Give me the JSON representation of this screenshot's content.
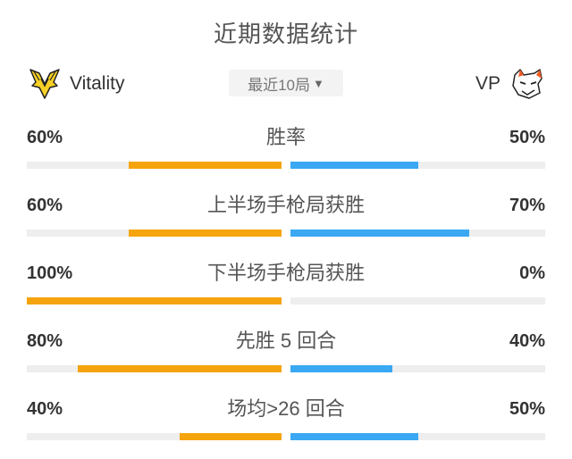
{
  "title": "近期数据统计",
  "team_left": {
    "name": "Vitality",
    "logo_icon": "vitality-bee-logo-icon"
  },
  "team_right": {
    "name": "VP",
    "logo_icon": "virtus-pro-bear-logo-icon"
  },
  "filter": {
    "label": "最近10局",
    "caret_icon": "triangle-down-icon"
  },
  "colors": {
    "left_bar": "#f5a40d",
    "right_bar": "#3aa8f2",
    "track": "#eeeeee"
  },
  "stats": [
    {
      "label": "胜率",
      "left": "60%",
      "right": "50%",
      "left_value": 0.6,
      "right_value": 0.5
    },
    {
      "label": "上半场手枪局获胜",
      "left": "60%",
      "right": "70%",
      "left_value": 0.6,
      "right_value": 0.7
    },
    {
      "label": "下半场手枪局获胜",
      "left": "100%",
      "right": "0%",
      "left_value": 1.0,
      "right_value": 0.0
    },
    {
      "label": "先胜 5 回合",
      "left": "80%",
      "right": "40%",
      "left_value": 0.8,
      "right_value": 0.4
    },
    {
      "label": "场均>26 回合",
      "left": "40%",
      "right": "50%",
      "left_value": 0.4,
      "right_value": 0.5
    }
  ]
}
